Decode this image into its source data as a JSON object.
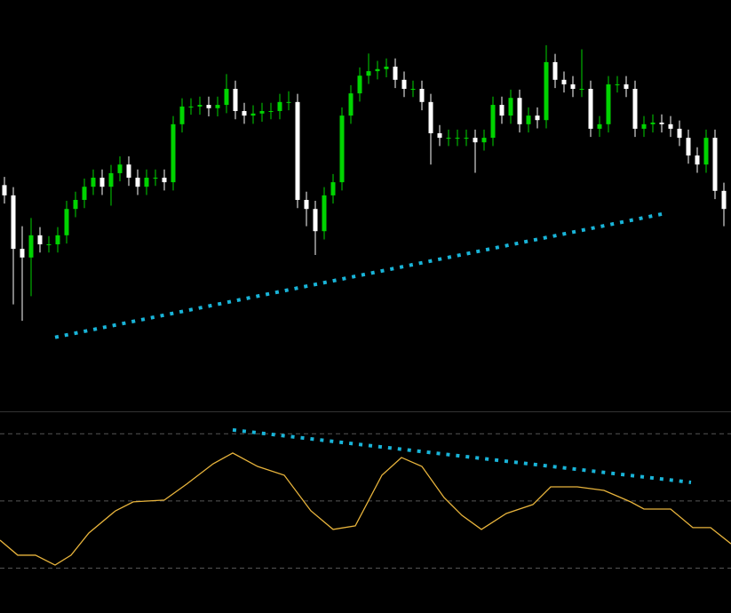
{
  "chart_data": [
    {
      "type": "candlestick",
      "up_color": "#00d400",
      "down_color": "#ffffff",
      "xlim": [
        0,
        82.3
      ],
      "ylim": [
        0,
        100
      ],
      "open": [
        55.0,
        52.5,
        39.5,
        37.4,
        42.8,
        40.6,
        40.6,
        42.8,
        49.2,
        51.4,
        54.6,
        56.8,
        54.6,
        57.9,
        60.0,
        56.8,
        54.6,
        56.8,
        56.8,
        55.7,
        69.8,
        74.1,
        74.1,
        74.5,
        73.7,
        74.5,
        78.4,
        73.0,
        71.9,
        72.4,
        73.0,
        73.0,
        75.2,
        75.2,
        51.4,
        49.2,
        43.8,
        52.5,
        55.7,
        71.9,
        77.3,
        81.6,
        82.7,
        83.2,
        83.8,
        80.6,
        78.4,
        78.4,
        75.2,
        67.6,
        66.5,
        66.5,
        66.5,
        66.5,
        65.4,
        66.5,
        74.5,
        71.9,
        76.2,
        69.8,
        71.9,
        70.8,
        84.9,
        80.6,
        79.5,
        78.4,
        78.4,
        68.7,
        69.8,
        79.5,
        79.5,
        78.4,
        68.7,
        69.8,
        70.2,
        69.8,
        68.7,
        66.5,
        62.2,
        60.0,
        66.5,
        53.6
      ],
      "high": [
        57.0,
        54.5,
        45.0,
        47.0,
        44.8,
        42.6,
        44.8,
        51.2,
        53.4,
        56.6,
        58.8,
        58.8,
        59.9,
        62.0,
        62.0,
        58.8,
        58.8,
        58.8,
        58.8,
        71.8,
        76.1,
        76.1,
        76.5,
        76.5,
        76.5,
        82.0,
        80.4,
        75.0,
        74.4,
        75.0,
        75.0,
        77.2,
        77.8,
        77.2,
        53.4,
        51.2,
        54.5,
        57.7,
        73.9,
        79.3,
        83.6,
        87.0,
        85.2,
        85.8,
        85.8,
        82.6,
        80.4,
        80.4,
        77.2,
        69.6,
        68.5,
        68.5,
        68.5,
        68.5,
        68.5,
        76.5,
        76.5,
        78.2,
        78.2,
        73.9,
        73.9,
        89.0,
        86.9,
        82.6,
        81.5,
        88.0,
        80.4,
        71.8,
        81.5,
        81.5,
        81.5,
        80.4,
        71.8,
        72.2,
        72.2,
        71.8,
        70.7,
        68.5,
        64.2,
        68.5,
        68.5,
        55.6
      ],
      "low": [
        50.5,
        26.0,
        22.0,
        28.0,
        38.6,
        38.6,
        38.6,
        40.8,
        47.2,
        49.4,
        52.6,
        52.6,
        50.0,
        55.9,
        54.8,
        52.6,
        52.6,
        54.8,
        53.7,
        53.7,
        67.8,
        72.1,
        72.1,
        71.7,
        71.7,
        72.5,
        71.0,
        69.9,
        69.9,
        70.4,
        71.0,
        71.0,
        73.2,
        49.4,
        45.0,
        38.0,
        41.8,
        50.5,
        53.7,
        69.9,
        75.3,
        79.6,
        80.7,
        81.2,
        78.6,
        76.4,
        76.4,
        73.2,
        60.0,
        64.5,
        64.5,
        64.5,
        64.5,
        58.0,
        63.4,
        64.5,
        69.9,
        69.9,
        67.8,
        67.8,
        68.8,
        68.8,
        78.6,
        77.5,
        76.4,
        76.4,
        66.7,
        66.7,
        67.8,
        77.5,
        76.4,
        66.7,
        66.7,
        67.8,
        67.8,
        66.7,
        64.5,
        60.2,
        58.0,
        58.0,
        51.6,
        45.0
      ],
      "close": [
        52.5,
        39.5,
        37.4,
        42.8,
        40.6,
        40.6,
        42.8,
        49.2,
        51.4,
        54.6,
        56.8,
        54.6,
        57.9,
        60.0,
        56.8,
        54.6,
        56.8,
        56.8,
        55.7,
        69.8,
        74.1,
        74.1,
        74.5,
        73.7,
        74.5,
        78.4,
        73.0,
        71.9,
        72.4,
        73.0,
        73.0,
        75.2,
        75.2,
        51.4,
        49.2,
        43.8,
        52.5,
        55.7,
        71.9,
        77.3,
        81.6,
        82.7,
        83.2,
        83.8,
        80.6,
        78.4,
        78.4,
        75.2,
        67.6,
        66.5,
        66.5,
        66.5,
        66.5,
        65.4,
        66.5,
        74.5,
        71.9,
        76.2,
        69.8,
        71.9,
        70.8,
        84.9,
        80.6,
        79.5,
        78.4,
        78.4,
        68.7,
        69.8,
        79.5,
        79.5,
        78.4,
        68.7,
        69.8,
        70.2,
        69.8,
        68.7,
        66.5,
        62.2,
        60.0,
        66.5,
        53.6,
        49.2
      ],
      "trendline": {
        "color": "#19b4d8",
        "x": [
          6.2,
          74.6
        ],
        "y": [
          18,
          48
        ]
      }
    },
    {
      "type": "line",
      "color": "#e8b43c",
      "xlim": [
        0,
        82.3
      ],
      "ylim": [
        0,
        90
      ],
      "levels": [
        20,
        50,
        80
      ],
      "level_color": "#555555",
      "x": [
        0,
        2,
        4,
        6.2,
        8,
        10,
        13,
        15,
        18.5,
        21,
        24,
        26.2,
        29,
        32,
        35,
        37.5,
        40,
        43,
        45.2,
        47.5,
        50,
        52,
        54.2,
        57,
        60,
        62,
        65,
        68,
        71,
        72.5,
        75.5,
        78,
        80,
        82.3
      ],
      "values": [
        32.5,
        25.8,
        25.8,
        21.4,
        25.8,
        35.7,
        45.6,
        49.6,
        50.4,
        57.5,
        66.6,
        71.4,
        65.4,
        61.5,
        45.6,
        37.3,
        38.9,
        61.5,
        69.4,
        65.4,
        51.5,
        43.6,
        37.3,
        44.4,
        48.4,
        56.3,
        56.3,
        54.7,
        49.6,
        46.4,
        46.4,
        38.1,
        38.1,
        30.9
      ],
      "trendline": {
        "color": "#19b4d8",
        "x": [
          26.2,
          77.8
        ],
        "y": [
          81.7,
          58.3
        ]
      }
    }
  ]
}
